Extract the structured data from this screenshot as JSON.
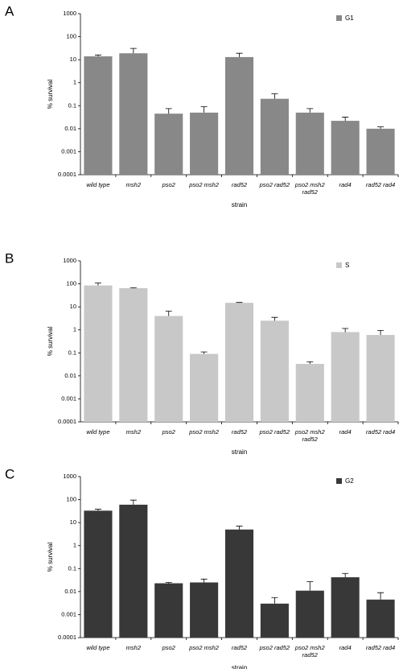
{
  "chart_data": [
    {
      "type": "bar",
      "label": "A",
      "y_label": "% survival",
      "x_label": "strain",
      "log_scale": true,
      "categories": [
        "wild type",
        "msh2",
        "pso2",
        "pso2 msh2",
        "rad52",
        "pso2 rad52",
        "pso2 msh2\nrad52",
        "rad4",
        "rad52 rad4"
      ],
      "series": [
        {
          "name": "G1",
          "color": "#888888",
          "values": [
            14,
            19,
            0.045,
            0.05,
            13,
            0.2,
            0.05,
            0.022,
            0.01
          ],
          "errors": [
            2,
            12,
            0.03,
            0.04,
            6,
            0.13,
            0.025,
            0.01,
            0.002
          ]
        }
      ],
      "ylim": [
        0.0001,
        1000
      ],
      "yticks": [
        0.0001,
        0.001,
        0.01,
        0.1,
        1,
        10,
        100,
        1000
      ],
      "legend": "upper right"
    },
    {
      "type": "bar",
      "label": "B",
      "y_label": "% survival",
      "x_label": "strain",
      "log_scale": true,
      "categories": [
        "wild type",
        "msh2",
        "pso2",
        "pso2 msh2",
        "rad52",
        "pso2 rad52",
        "pso2 msh2\nrad52",
        "rad4",
        "rad52 rad4"
      ],
      "series": [
        {
          "name": "S",
          "color": "#c8c8c8",
          "values": [
            85,
            65,
            4,
            0.09,
            15,
            2.5,
            0.033,
            0.8,
            0.6
          ],
          "errors": [
            25,
            3,
            2.5,
            0.02,
            0.5,
            1,
            0.008,
            0.35,
            0.35
          ]
        }
      ],
      "ylim": [
        0.0001,
        1000
      ],
      "yticks": [
        0.0001,
        0.001,
        0.01,
        0.1,
        1,
        10,
        100,
        1000
      ],
      "legend": "upper right"
    },
    {
      "type": "bar",
      "label": "C",
      "y_label": "% survival",
      "x_label": "strain",
      "log_scale": true,
      "categories": [
        "wild type",
        "msh2",
        "pso2",
        "pso2 msh2",
        "rad52",
        "pso2 rad52",
        "pso2 msh2\nrad52",
        "rad4",
        "rad52 rad4"
      ],
      "series": [
        {
          "name": "G2",
          "color": "#383838",
          "values": [
            33,
            60,
            0.023,
            0.025,
            5,
            0.003,
            0.011,
            0.042,
            0.0045
          ],
          "errors": [
            5,
            35,
            0.002,
            0.01,
            2,
            0.0025,
            0.016,
            0.02,
            0.0045
          ]
        }
      ],
      "ylim": [
        0.0001,
        1000
      ],
      "yticks": [
        0.0001,
        0.001,
        0.01,
        0.1,
        1,
        10,
        100,
        1000
      ],
      "legend": "upper right"
    }
  ]
}
